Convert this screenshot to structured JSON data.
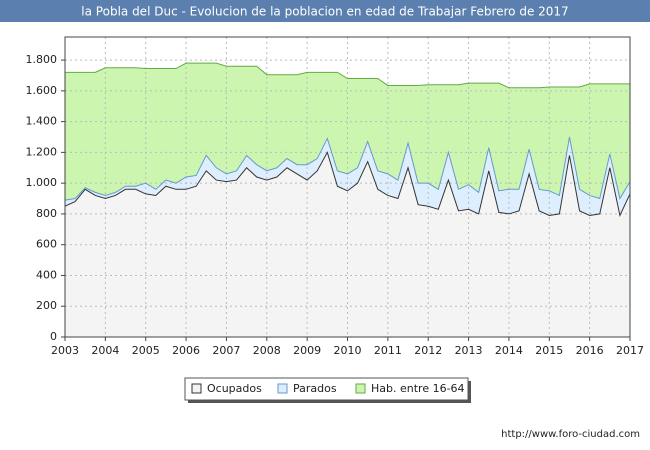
{
  "chart_data": {
    "type": "area",
    "title": "la Pobla del Duc - Evolucion de la poblacion en edad de Trabajar Febrero de 2017",
    "footer": "http://www.foro-ciudad.com",
    "x": [
      2003,
      2003.25,
      2003.5,
      2003.75,
      2004,
      2004.25,
      2004.5,
      2004.75,
      2005,
      2005.25,
      2005.5,
      2005.75,
      2006,
      2006.25,
      2006.5,
      2006.75,
      2007,
      2007.25,
      2007.5,
      2007.75,
      2008,
      2008.25,
      2008.5,
      2008.75,
      2009,
      2009.25,
      2009.5,
      2009.75,
      2010,
      2010.25,
      2010.5,
      2010.75,
      2011,
      2011.25,
      2011.5,
      2011.75,
      2012,
      2012.25,
      2012.5,
      2012.75,
      2013,
      2013.25,
      2013.5,
      2013.75,
      2014,
      2014.25,
      2014.5,
      2014.75,
      2015,
      2015.25,
      2015.5,
      2015.75,
      2016,
      2016.25,
      2016.5,
      2016.75,
      2017
    ],
    "series": [
      {
        "name": "Ocupados",
        "color": "#f4f4f4",
        "line": "#333333",
        "stacked": true,
        "values": [
          850,
          880,
          960,
          920,
          900,
          920,
          960,
          960,
          930,
          920,
          980,
          960,
          960,
          980,
          1080,
          1020,
          1010,
          1020,
          1100,
          1040,
          1020,
          1040,
          1100,
          1060,
          1020,
          1080,
          1200,
          980,
          950,
          1000,
          1140,
          960,
          920,
          900,
          1100,
          860,
          850,
          830,
          1020,
          820,
          830,
          800,
          1080,
          810,
          800,
          820,
          1060,
          820,
          790,
          800,
          1180,
          820,
          790,
          800,
          1100,
          790,
          930
        ]
      },
      {
        "name": "Parados",
        "color": "#ddeeff",
        "line": "#6699cc",
        "stacked": true,
        "values": [
          40,
          20,
          10,
          20,
          20,
          20,
          20,
          20,
          70,
          40,
          40,
          40,
          80,
          70,
          100,
          80,
          50,
          60,
          80,
          80,
          60,
          60,
          60,
          60,
          100,
          80,
          90,
          100,
          110,
          100,
          130,
          120,
          140,
          120,
          160,
          140,
          150,
          130,
          180,
          140,
          160,
          140,
          150,
          140,
          160,
          140,
          160,
          140,
          160,
          120,
          120,
          140,
          130,
          100,
          90,
          110,
          80
        ]
      },
      {
        "name": "Hab. entre 16-64",
        "color": "#ccf5b0",
        "line": "#66aa44",
        "stacked": false,
        "values": [
          1720,
          1720,
          1720,
          1720,
          1750,
          1750,
          1750,
          1750,
          1745,
          1745,
          1745,
          1745,
          1780,
          1780,
          1780,
          1780,
          1760,
          1760,
          1760,
          1760,
          1705,
          1705,
          1705,
          1705,
          1720,
          1720,
          1720,
          1720,
          1680,
          1680,
          1680,
          1680,
          1635,
          1635,
          1635,
          1635,
          1640,
          1640,
          1640,
          1640,
          1650,
          1650,
          1650,
          1650,
          1620,
          1620,
          1620,
          1620,
          1625,
          1625,
          1625,
          1625,
          1645,
          1645,
          1645,
          1645,
          1645
        ]
      }
    ],
    "xlim": [
      2003,
      2017
    ],
    "xticks": [
      2003,
      2004,
      2005,
      2006,
      2007,
      2008,
      2009,
      2010,
      2011,
      2012,
      2013,
      2014,
      2015,
      2016,
      2017
    ],
    "ylim": [
      0,
      1950
    ],
    "yticks": [
      0,
      200,
      400,
      600,
      800,
      {
        "value": 1000,
        "label": "1.000"
      },
      {
        "value": 1200,
        "label": "1.200"
      },
      {
        "value": 1400,
        "label": "1.400"
      },
      {
        "value": 1600,
        "label": "1.600"
      },
      {
        "value": 1800,
        "label": "1.800"
      }
    ],
    "grid": true
  }
}
